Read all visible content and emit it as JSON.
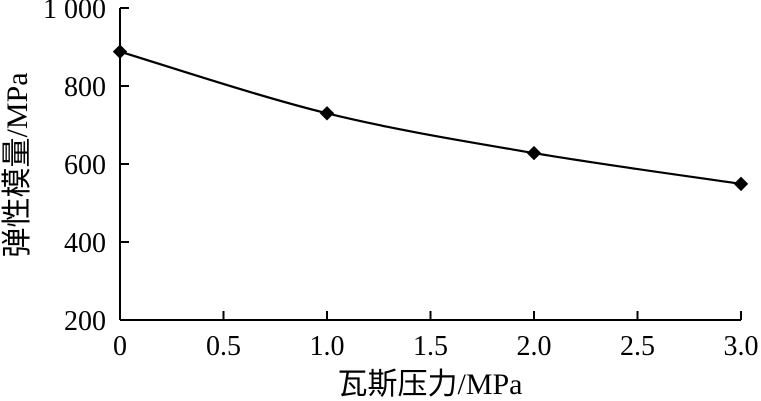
{
  "chart_data": {
    "type": "line",
    "x": [
      0,
      1.0,
      2.0,
      3.0
    ],
    "series": [
      {
        "values": [
          888,
          730,
          628,
          549
        ]
      }
    ],
    "xlabel": "瓦斯压力/MPa",
    "ylabel": "弹性模量/MPa",
    "xlim": [
      0,
      3.0
    ],
    "ylim": [
      200,
      1000
    ],
    "x_ticks": [
      0,
      0.5,
      1.0,
      1.5,
      2.0,
      2.5,
      3.0
    ],
    "x_tick_labels": [
      "0",
      "0.5",
      "1.0",
      "1.5",
      "2.0",
      "2.5",
      "3.0"
    ],
    "y_ticks": [
      200,
      400,
      600,
      800,
      1000
    ],
    "y_tick_labels": [
      "200",
      "400",
      "600",
      "800",
      "1 000"
    ],
    "grid": false,
    "marker": "diamond",
    "line_style": "smooth",
    "color": "#000000"
  }
}
